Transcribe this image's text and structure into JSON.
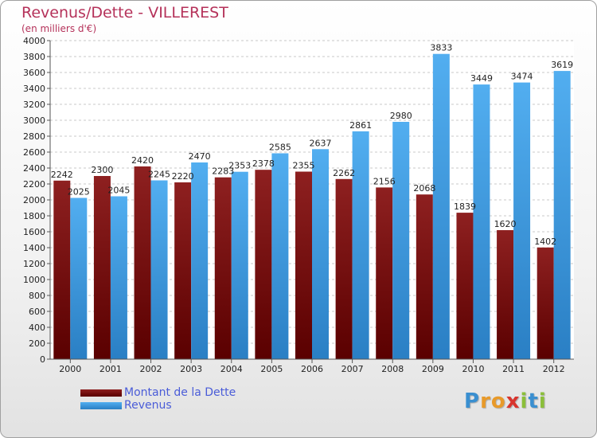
{
  "header": {
    "title": "Revenus/Dette - VILLEREST",
    "subtitle": "(en milliers d'€)"
  },
  "chart_data": {
    "type": "bar",
    "categories": [
      "2000",
      "2001",
      "2002",
      "2003",
      "2004",
      "2005",
      "2006",
      "2007",
      "2008",
      "2009",
      "2010",
      "2011",
      "2012"
    ],
    "series": [
      {
        "name": "Montant de la Dette",
        "color": "#7a0a0a",
        "values": [
          2242,
          2300,
          2420,
          2220,
          2283,
          2378,
          2355,
          2262,
          2156,
          2068,
          1839,
          1620,
          1402
        ]
      },
      {
        "name": "Revenus",
        "color": "#3c9be0",
        "values": [
          2025,
          2045,
          2245,
          2470,
          2353,
          2585,
          2637,
          2861,
          2980,
          3833,
          3449,
          3474,
          3619
        ]
      }
    ],
    "yticks": [
      0,
      200,
      400,
      600,
      800,
      1000,
      1200,
      1400,
      1600,
      1800,
      2000,
      2200,
      2400,
      2600,
      2800,
      3000,
      3200,
      3400,
      3600,
      3800,
      4000
    ],
    "ylim": [
      0,
      4000
    ],
    "grid": true,
    "legend_position": "bottom-left"
  },
  "legend": {
    "items": [
      {
        "label": "Montant de la Dette",
        "color": "#7a0a0a"
      },
      {
        "label": "Revenus",
        "color": "#3c9be0"
      }
    ]
  },
  "logo": {
    "letters": [
      "P",
      "r",
      "o",
      "x",
      "i",
      "t",
      "i"
    ],
    "colors": [
      "#3a8fd0",
      "#e89a2a",
      "#e89a2a",
      "#d8352e",
      "#8bbf3a",
      "#3a8fd0",
      "#8bbf3a"
    ]
  }
}
